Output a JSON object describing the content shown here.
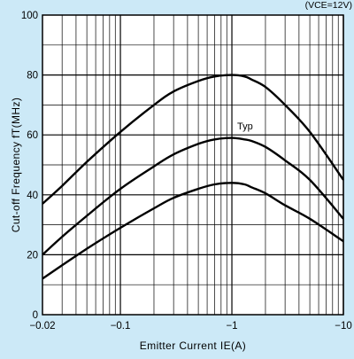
{
  "chart_data": {
    "type": "line",
    "title": "",
    "condition": "(VCE=12V)",
    "xlabel": "Emitter Current IE(A)",
    "ylabel": "Cut-off Frequency fT(MHz)",
    "x_scale": "log",
    "x_range": [
      -0.02,
      -10
    ],
    "xlim": [
      -0.02,
      -10
    ],
    "ylim": [
      0,
      100
    ],
    "x_ticks": [
      "−0.02",
      "−0.1",
      "−1",
      "−10"
    ],
    "y_ticks": [
      "0",
      "20",
      "40",
      "60",
      "80",
      "100"
    ],
    "grid": true,
    "annotation": "Typ",
    "colors": {
      "background": "#cce9f7",
      "plot_area": "#ffffff",
      "line": "#000000"
    },
    "x": [
      -0.02,
      -0.03,
      -0.05,
      -0.1,
      -0.2,
      -0.3,
      -0.5,
      -0.7,
      -1,
      -1.3,
      -1.5,
      -2,
      -3,
      -5,
      -10
    ],
    "series": [
      {
        "name": "",
        "values": [
          37,
          43,
          51,
          61,
          70,
          74.5,
          78,
          79.5,
          80,
          79.5,
          78.5,
          76,
          70,
          61,
          45
        ]
      },
      {
        "name": "Typ",
        "values": [
          20,
          26,
          33,
          42,
          49.5,
          53.5,
          57,
          58.5,
          59,
          58.5,
          58,
          56,
          51.5,
          45,
          32
        ]
      },
      {
        "name": "",
        "values": [
          12,
          16.5,
          22,
          29,
          35.5,
          39,
          42,
          43.5,
          44,
          43.5,
          42.5,
          40.5,
          36.5,
          32,
          24.5
        ]
      }
    ]
  }
}
